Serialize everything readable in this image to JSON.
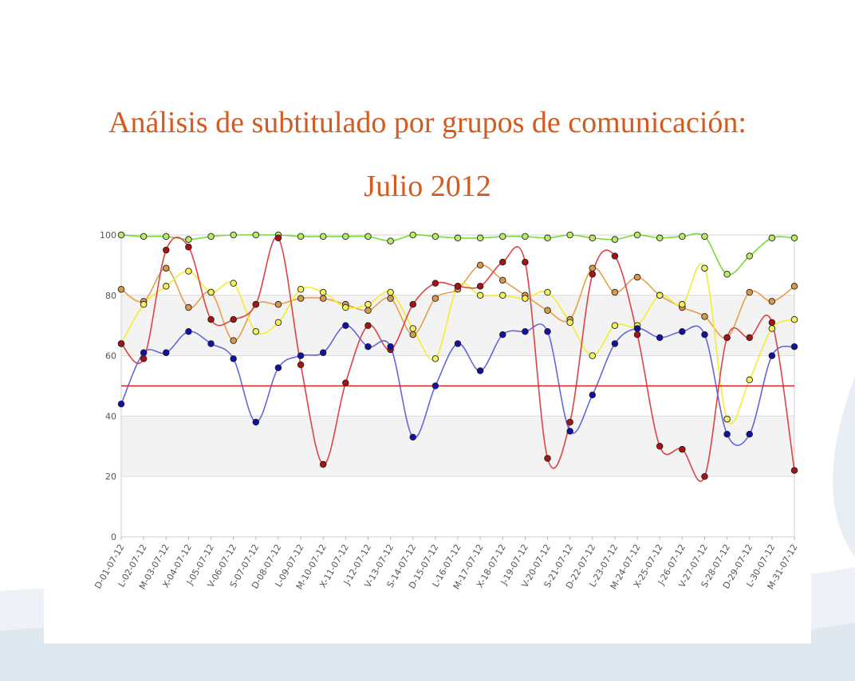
{
  "title_line_1": "Análisis de subtitulado por grupos de comunicación:",
  "title_line_2": "Julio 2012",
  "chart_data": {
    "type": "line",
    "title": "Análisis de subtitulado por grupos de comunicación: Julio 2012",
    "categories": [
      "D-01-07-12",
      "L-02-07-12",
      "M-03-07-12",
      "X-04-07-12",
      "J-05-07-12",
      "V-06-07-12",
      "S-07-07-12",
      "D-08-07-12",
      "L-09-07-12",
      "M-10-07-12",
      "X-11-07-12",
      "J-12-07-12",
      "V-13-07-12",
      "S-14-07-12",
      "D-15-07-12",
      "L-16-07-12",
      "M-17-07-12",
      "X-18-07-12",
      "J-19-07-12",
      "V-20-07-12",
      "S-21-07-12",
      "D-22-07-12",
      "L-23-07-12",
      "M-24-07-12",
      "X-25-07-12",
      "J-26-07-12",
      "V-27-07-12",
      "S-28-07-12",
      "D-29-07-12",
      "L-30-07-12",
      "M-31-07-12"
    ],
    "ylim": [
      0,
      100
    ],
    "yticks": [
      0,
      20,
      40,
      60,
      80,
      100
    ],
    "grid": true,
    "bands": [
      [
        20,
        40
      ],
      [
        60,
        80
      ]
    ],
    "reference_line": {
      "value": 50,
      "color": "#cc2222"
    },
    "series": [
      {
        "line_color": "#77dd33",
        "marker_color": "#bde86a",
        "values": [
          100,
          99.5,
          99.5,
          98.5,
          99.5,
          100,
          100,
          100,
          99.5,
          99.5,
          99.5,
          99.5,
          98,
          100,
          99.5,
          99,
          99,
          99.5,
          99.5,
          99,
          100,
          99,
          98.5,
          100,
          99,
          99.5,
          99.5,
          87,
          93,
          99,
          99
        ]
      },
      {
        "line_color": "#e8a048",
        "marker_color": "#d89a48",
        "values": [
          82,
          78,
          89,
          76,
          81,
          65,
          77,
          77,
          79,
          79,
          77,
          75,
          79,
          67,
          79,
          82,
          90,
          85,
          80,
          75,
          72,
          89,
          81,
          86,
          80,
          76,
          73,
          66,
          81,
          78,
          83
        ]
      },
      {
        "line_color": "#f2ee2e",
        "marker_color": "#f4f060",
        "values": [
          64,
          77,
          83,
          88,
          81,
          84,
          68,
          71,
          82,
          81,
          76,
          77,
          81,
          69,
          59,
          83,
          80,
          80,
          79,
          81,
          71,
          60,
          70,
          70,
          80,
          77,
          89,
          39,
          52,
          69,
          72
        ]
      },
      {
        "line_color": "#dd4444",
        "marker_color": "#aa1111",
        "values": [
          64,
          59,
          95,
          96,
          72,
          72,
          77,
          99,
          57,
          24,
          51,
          70,
          62,
          77,
          84,
          83,
          83,
          91,
          91,
          26,
          38,
          87,
          93,
          67,
          30,
          29,
          20,
          66,
          66,
          71,
          22
        ]
      },
      {
        "line_color": "#6666dd",
        "marker_color": "#1111aa",
        "values": [
          44,
          61,
          61,
          68,
          64,
          59,
          38,
          56,
          60,
          61,
          70,
          63,
          63,
          33,
          50,
          64,
          55,
          67,
          68,
          68,
          35,
          47,
          64,
          69,
          66,
          68,
          67,
          34,
          34,
          60,
          63
        ]
      }
    ]
  }
}
